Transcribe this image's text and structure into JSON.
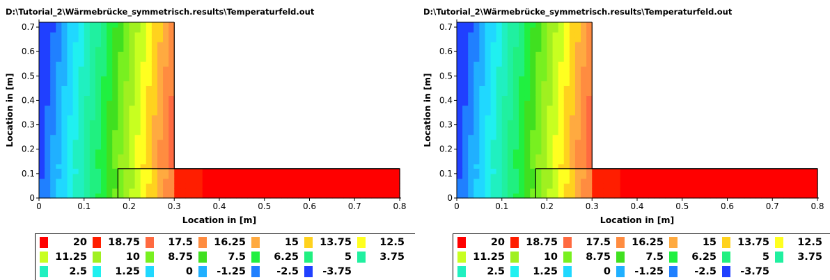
{
  "panels": [
    {
      "title": "D:\\Tutorial_2\\Wärmebrücke_symmetrisch.results\\Temperaturfeld.out"
    },
    {
      "title": "D:\\Tutorial_2\\Wärmebrücke_symmetrisch.results\\Temperaturfeld.out"
    }
  ],
  "legend": [
    {
      "label": "20",
      "color": "#ff0000"
    },
    {
      "label": "18.75",
      "color": "#ff1e00"
    },
    {
      "label": "17.5",
      "color": "#ff6a40"
    },
    {
      "label": "16.25",
      "color": "#ff8c40"
    },
    {
      "label": "15",
      "color": "#ffaa40"
    },
    {
      "label": "13.75",
      "color": "#ffd21e"
    },
    {
      "label": "12.5",
      "color": "#ffff20"
    },
    {
      "label": "11.25",
      "color": "#c8ff20"
    },
    {
      "label": "10",
      "color": "#a0f020"
    },
    {
      "label": "8.75",
      "color": "#78f020"
    },
    {
      "label": "7.5",
      "color": "#40e020"
    },
    {
      "label": "6.25",
      "color": "#20f040"
    },
    {
      "label": "5",
      "color": "#20f080"
    },
    {
      "label": "3.75",
      "color": "#20f0a0"
    },
    {
      "label": "2.5",
      "color": "#20f0c0"
    },
    {
      "label": "1.25",
      "color": "#20f0f0"
    },
    {
      "label": "0",
      "color": "#20d8ff"
    },
    {
      "label": "-1.25",
      "color": "#20b0ff"
    },
    {
      "label": "-2.5",
      "color": "#2080ff"
    },
    {
      "label": "-3.75",
      "color": "#2040ff"
    }
  ],
  "chart_data": [
    {
      "type": "heatmap",
      "title": "D:\\Tutorial_2\\Wärmebrücke_symmetrisch.results\\Temperaturfeld.out",
      "xlabel": "Location in [m]",
      "ylabel": "Location in [m]",
      "xlim": [
        0,
        0.8
      ],
      "ylim": [
        0,
        0.72
      ],
      "xticks": [
        "0",
        "0.1",
        "0.2",
        "0.3",
        "0.4",
        "0.5",
        "0.6",
        "0.7",
        "0.8"
      ],
      "yticks": [
        "0",
        "0.1",
        "0.2",
        "0.3",
        "0.4",
        "0.5",
        "0.6",
        "0.7"
      ],
      "domain": {
        "wall": {
          "x": [
            0,
            0.3
          ],
          "y": [
            0,
            0.72
          ]
        },
        "slab": {
          "x": [
            0,
            0.8
          ],
          "y": [
            0,
            0.12
          ]
        }
      },
      "inner_boundary": {
        "x": 0.175,
        "y": 0.12
      },
      "color_scale_min": -3.75,
      "color_scale_max": 20
    },
    {
      "type": "heatmap",
      "title": "D:\\Tutorial_2\\Wärmebrücke_symmetrisch.results\\Temperaturfeld.out",
      "xlabel": "Location in [m]",
      "ylabel": "Location in [m]",
      "xlim": [
        0,
        0.8
      ],
      "ylim": [
        0,
        0.72
      ],
      "xticks": [
        "0",
        "0.1",
        "0.2",
        "0.3",
        "0.4",
        "0.5",
        "0.6",
        "0.7",
        "0.8"
      ],
      "yticks": [
        "0",
        "0.1",
        "0.2",
        "0.3",
        "0.4",
        "0.5",
        "0.6",
        "0.7"
      ],
      "domain": {
        "wall": {
          "x": [
            0,
            0.3
          ],
          "y": [
            0,
            0.72
          ]
        },
        "slab": {
          "x": [
            0,
            0.8
          ],
          "y": [
            0,
            0.12
          ]
        }
      },
      "inner_boundary": {
        "x": 0.175,
        "y": 0.12
      },
      "color_scale_min": -3.75,
      "color_scale_max": 20
    }
  ]
}
